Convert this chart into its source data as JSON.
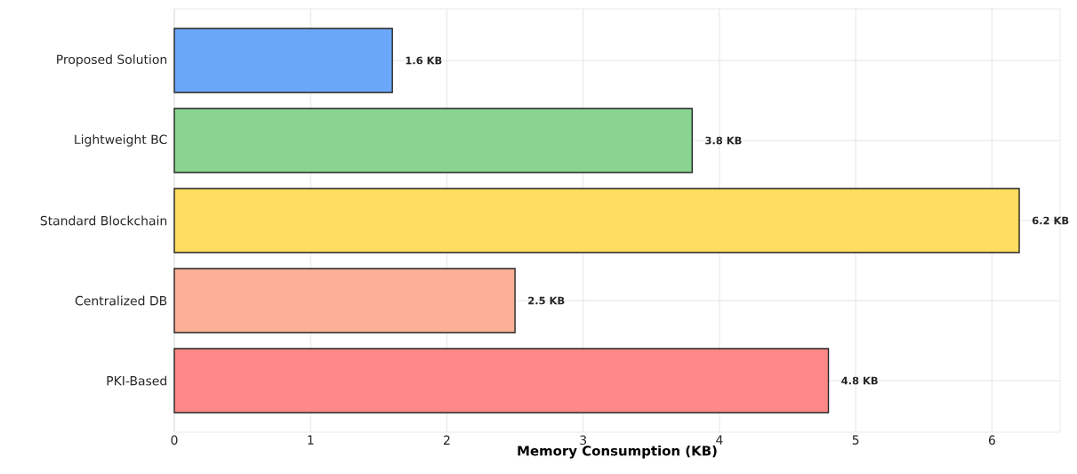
{
  "chart_data": {
    "type": "bar",
    "orientation": "horizontal",
    "xlabel": "Memory Consumption (KB)",
    "categories": [
      "Proposed Solution",
      "Lightweight BC",
      "Standard Blockchain",
      "Centralized DB",
      "PKI-Based"
    ],
    "values": [
      1.6,
      3.8,
      6.2,
      2.5,
      4.8
    ],
    "value_labels": [
      "1.6 KB",
      "3.8 KB",
      "6.2 KB",
      "2.5 KB",
      "4.8 KB"
    ],
    "colors": [
      "#6aa7f8",
      "#88d490",
      "#fedc5f",
      "#fdb096",
      "#fe8888"
    ],
    "xlim": [
      0,
      6.5
    ],
    "xticks": [
      0,
      1,
      2,
      3,
      4,
      5,
      6
    ],
    "grid": true
  }
}
